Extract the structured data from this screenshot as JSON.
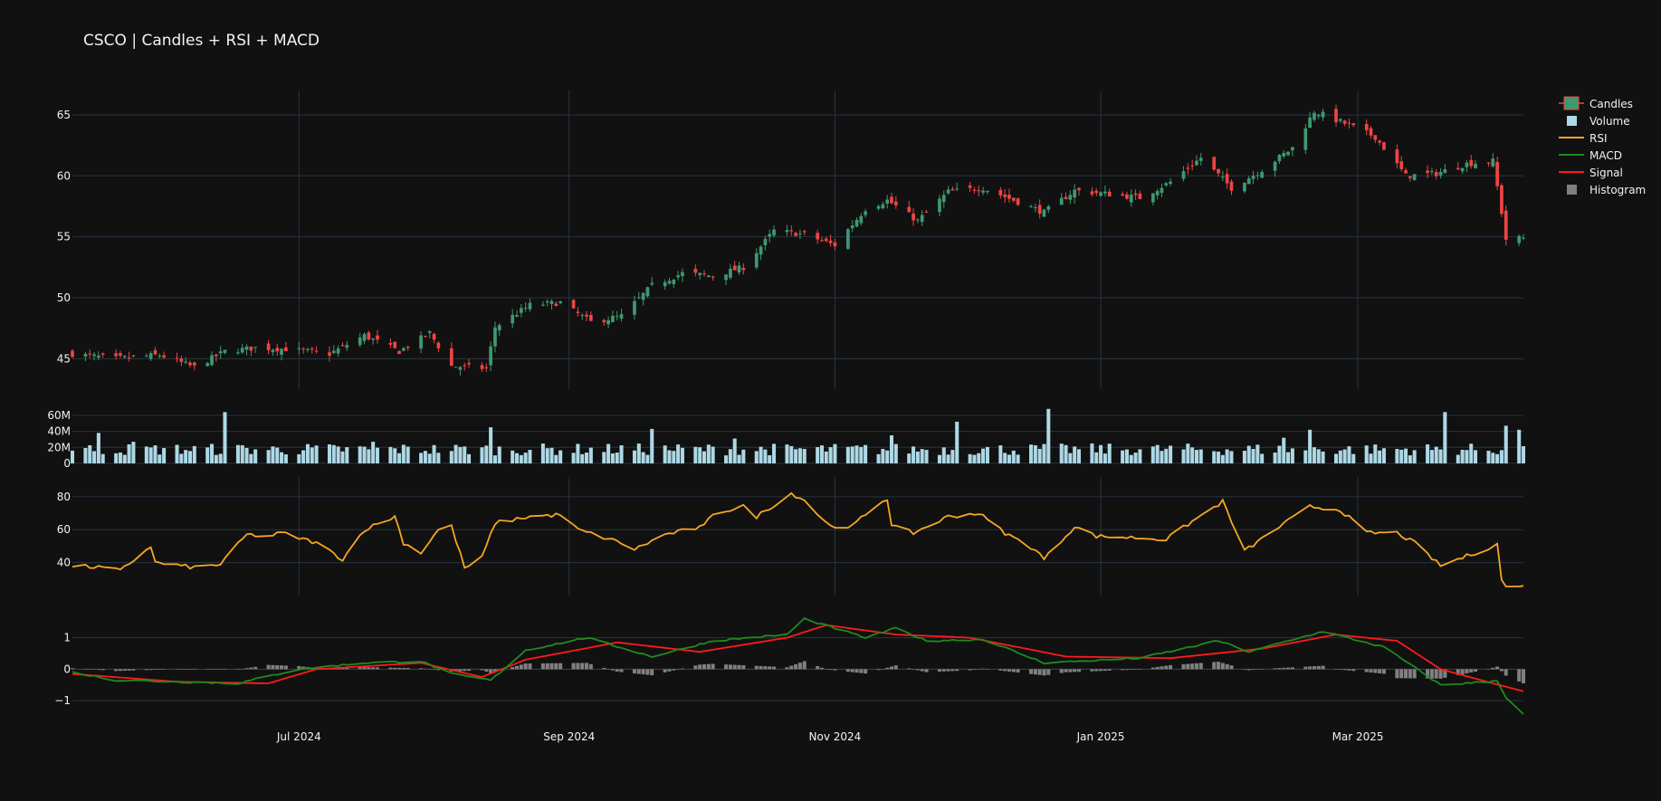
{
  "title": "CSCO | Candles + RSI + MACD",
  "colors": {
    "background": "#111111",
    "grid": "#283442",
    "text": "#f2f2f2",
    "candle_up": "#3d9970",
    "candle_down": "#ef4444",
    "volume": "#add8e6",
    "rsi": "#f5a623",
    "macd": "#1f8a1f",
    "signal": "#ff1a1a",
    "histogram": "#808080"
  },
  "legend": [
    {
      "label": "Candles",
      "icon": "candle-icon",
      "color": "#3d9970"
    },
    {
      "label": "Volume",
      "icon": "bar-icon",
      "color": "#add8e6"
    },
    {
      "label": "RSI",
      "icon": "line-icon",
      "color": "#f5a623"
    },
    {
      "label": "MACD",
      "icon": "line-icon",
      "color": "#1f8a1f"
    },
    {
      "label": "Signal",
      "icon": "line-icon",
      "color": "#ff1a1a"
    },
    {
      "label": "Histogram",
      "icon": "bar-icon",
      "color": "#808080"
    }
  ],
  "chart_data": {
    "type": "candlestick-with-indicators",
    "ticker": "CSCO",
    "x_range": [
      "2024-05-10",
      "2025-04-08"
    ],
    "x_ticks": [
      {
        "date": "2024-07-01",
        "label": "Jul 2024"
      },
      {
        "date": "2024-09-01",
        "label": "Sep 2024"
      },
      {
        "date": "2024-11-01",
        "label": "Nov 2024"
      },
      {
        "date": "2025-01-01",
        "label": "Jan 2025"
      },
      {
        "date": "2025-03-01",
        "label": "Mar 2025"
      }
    ],
    "price_panel": {
      "ylim": [
        42.5,
        67
      ],
      "y_ticks": [
        {
          "value": 45,
          "label": "45"
        },
        {
          "value": 50,
          "label": "50"
        },
        {
          "value": 55,
          "label": "55"
        },
        {
          "value": 60,
          "label": "60"
        },
        {
          "value": 65,
          "label": "65"
        }
      ],
      "close_anchors": [
        [
          "2024-05-10",
          45.4
        ],
        [
          "2024-05-20",
          45.0
        ],
        [
          "2024-05-30",
          45.3
        ],
        [
          "2024-06-07",
          44.3
        ],
        [
          "2024-06-14",
          45.6
        ],
        [
          "2024-06-21",
          45.9
        ],
        [
          "2024-06-28",
          45.8
        ],
        [
          "2024-07-08",
          45.4
        ],
        [
          "2024-07-16",
          46.9
        ],
        [
          "2024-07-24",
          45.6
        ],
        [
          "2024-07-31",
          47.1
        ],
        [
          "2024-08-05",
          44.4
        ],
        [
          "2024-08-13",
          44.2
        ],
        [
          "2024-08-15",
          47.6
        ],
        [
          "2024-08-23",
          49.4
        ],
        [
          "2024-08-30",
          49.6
        ],
        [
          "2024-09-06",
          48.0
        ],
        [
          "2024-09-13",
          48.5
        ],
        [
          "2024-09-20",
          51.0
        ],
        [
          "2024-09-27",
          52.0
        ],
        [
          "2024-10-04",
          51.8
        ],
        [
          "2024-10-11",
          52.5
        ],
        [
          "2024-10-18",
          55.5
        ],
        [
          "2024-10-25",
          55.2
        ],
        [
          "2024-11-01",
          54.3
        ],
        [
          "2024-11-08",
          57.3
        ],
        [
          "2024-11-13",
          58.0
        ],
        [
          "2024-11-20",
          56.3
        ],
        [
          "2024-11-27",
          58.7
        ],
        [
          "2024-12-05",
          59.0
        ],
        [
          "2024-12-12",
          58.0
        ],
        [
          "2024-12-19",
          57.0
        ],
        [
          "2024-12-26",
          58.8
        ],
        [
          "2025-01-03",
          58.5
        ],
        [
          "2025-01-10",
          58.2
        ],
        [
          "2025-01-17",
          59.5
        ],
        [
          "2025-01-24",
          61.5
        ],
        [
          "2025-01-31",
          59.0
        ],
        [
          "2025-02-07",
          60.5
        ],
        [
          "2025-02-14",
          62.3
        ],
        [
          "2025-02-19",
          65.3
        ],
        [
          "2025-02-26",
          64.3
        ],
        [
          "2025-03-05",
          63.2
        ],
        [
          "2025-03-12",
          60.0
        ],
        [
          "2025-03-19",
          60.2
        ],
        [
          "2025-03-26",
          61.0
        ],
        [
          "2025-04-01",
          61.2
        ],
        [
          "2025-04-03",
          57.0
        ],
        [
          "2025-04-04",
          54.8
        ],
        [
          "2025-04-08",
          54.9
        ]
      ]
    },
    "volume_panel": {
      "ylim": [
        0,
        70
      ],
      "unit": "M",
      "y_ticks": [
        {
          "value": 0,
          "label": "0"
        },
        {
          "value": 20,
          "label": "20M"
        },
        {
          "value": 40,
          "label": "40M"
        },
        {
          "value": 60,
          "label": "60M"
        }
      ],
      "typical_range": [
        10,
        25
      ],
      "spikes": [
        [
          "2024-05-16",
          38
        ],
        [
          "2024-05-24",
          27
        ],
        [
          "2024-06-14",
          64
        ],
        [
          "2024-07-18",
          27
        ],
        [
          "2024-08-14",
          45
        ],
        [
          "2024-09-20",
          43
        ],
        [
          "2024-10-09",
          31
        ],
        [
          "2024-11-14",
          35
        ],
        [
          "2024-11-29",
          52
        ],
        [
          "2024-12-20",
          68
        ],
        [
          "2025-02-12",
          32
        ],
        [
          "2025-02-18",
          42
        ],
        [
          "2025-03-21",
          64
        ],
        [
          "2025-04-04",
          47
        ],
        [
          "2025-04-07",
          42
        ]
      ]
    },
    "rsi_panel": {
      "ylim": [
        20,
        92
      ],
      "y_ticks": [
        {
          "value": 40,
          "label": "40"
        },
        {
          "value": 60,
          "label": "60"
        },
        {
          "value": 80,
          "label": "80"
        }
      ],
      "anchors": [
        [
          "2024-05-10",
          38
        ],
        [
          "2024-05-17",
          37
        ],
        [
          "2024-05-21",
          35
        ],
        [
          "2024-05-28",
          50
        ],
        [
          "2024-05-29",
          40
        ],
        [
          "2024-06-07",
          37
        ],
        [
          "2024-06-13",
          39
        ],
        [
          "2024-06-19",
          57
        ],
        [
          "2024-06-24",
          56
        ],
        [
          "2024-06-27",
          58
        ],
        [
          "2024-07-05",
          52
        ],
        [
          "2024-07-11",
          42
        ],
        [
          "2024-07-16",
          60
        ],
        [
          "2024-07-23",
          68
        ],
        [
          "2024-07-25",
          52
        ],
        [
          "2024-07-29",
          46
        ],
        [
          "2024-08-02",
          60
        ],
        [
          "2024-08-05",
          62
        ],
        [
          "2024-08-08",
          37
        ],
        [
          "2024-08-09",
          38
        ],
        [
          "2024-08-12",
          43
        ],
        [
          "2024-08-15",
          64
        ],
        [
          "2024-08-23",
          68
        ],
        [
          "2024-08-30",
          69
        ],
        [
          "2024-09-03",
          60
        ],
        [
          "2024-09-13",
          52
        ],
        [
          "2024-09-16",
          48
        ],
        [
          "2024-09-23",
          57
        ],
        [
          "2024-10-02",
          62
        ],
        [
          "2024-10-04",
          70
        ],
        [
          "2024-10-11",
          74
        ],
        [
          "2024-10-14",
          68
        ],
        [
          "2024-10-22",
          82
        ],
        [
          "2024-10-25",
          78
        ],
        [
          "2024-10-30",
          64
        ],
        [
          "2024-11-04",
          60
        ],
        [
          "2024-11-11",
          76
        ],
        [
          "2024-11-13",
          79
        ],
        [
          "2024-11-14",
          62
        ],
        [
          "2024-11-19",
          58
        ],
        [
          "2024-11-27",
          68
        ],
        [
          "2024-12-04",
          70
        ],
        [
          "2024-12-10",
          58
        ],
        [
          "2024-12-17",
          48
        ],
        [
          "2024-12-19",
          42
        ],
        [
          "2024-12-26",
          62
        ],
        [
          "2024-12-31",
          56
        ],
        [
          "2025-01-10",
          55
        ],
        [
          "2025-01-16",
          54
        ],
        [
          "2025-01-22",
          65
        ],
        [
          "2025-01-29",
          77
        ],
        [
          "2025-02-03",
          47
        ],
        [
          "2025-02-10",
          60
        ],
        [
          "2025-02-18",
          74
        ],
        [
          "2025-02-25",
          72
        ],
        [
          "2025-03-03",
          58
        ],
        [
          "2025-03-10",
          58
        ],
        [
          "2025-03-14",
          52
        ],
        [
          "2025-03-20",
          38
        ],
        [
          "2025-03-24",
          42
        ],
        [
          "2025-03-28",
          46
        ],
        [
          "2025-04-02",
          51
        ],
        [
          "2025-04-03",
          30
        ],
        [
          "2025-04-04",
          25
        ],
        [
          "2025-04-07",
          25
        ],
        [
          "2025-04-08",
          27
        ]
      ]
    },
    "macd_panel": {
      "ylim": [
        -1.6,
        1.85
      ],
      "y_ticks": [
        {
          "value": -1,
          "label": "−1"
        },
        {
          "value": 0,
          "label": "0"
        },
        {
          "value": 1,
          "label": "1"
        }
      ],
      "macd_anchors": [
        [
          "2024-05-10",
          -0.1
        ],
        [
          "2024-05-20",
          -0.35
        ],
        [
          "2024-06-03",
          -0.4
        ],
        [
          "2024-06-17",
          -0.45
        ],
        [
          "2024-07-01",
          0.0
        ],
        [
          "2024-07-16",
          0.2
        ],
        [
          "2024-07-29",
          0.25
        ],
        [
          "2024-08-05",
          -0.15
        ],
        [
          "2024-08-14",
          -0.35
        ],
        [
          "2024-08-22",
          0.6
        ],
        [
          "2024-09-05",
          1.0
        ],
        [
          "2024-09-20",
          0.4
        ],
        [
          "2024-10-04",
          0.9
        ],
        [
          "2024-10-21",
          1.1
        ],
        [
          "2024-10-25",
          1.6
        ],
        [
          "2024-11-08",
          1.0
        ],
        [
          "2024-11-15",
          1.3
        ],
        [
          "2024-11-22",
          0.9
        ],
        [
          "2024-12-05",
          0.95
        ],
        [
          "2024-12-19",
          0.2
        ],
        [
          "2025-01-10",
          0.35
        ],
        [
          "2025-01-28",
          0.9
        ],
        [
          "2025-02-04",
          0.55
        ],
        [
          "2025-02-21",
          1.2
        ],
        [
          "2025-03-07",
          0.7
        ],
        [
          "2025-03-20",
          -0.5
        ],
        [
          "2025-03-31",
          -0.4
        ],
        [
          "2025-04-02",
          -0.35
        ],
        [
          "2025-04-04",
          -0.9
        ],
        [
          "2025-04-08",
          -1.45
        ]
      ],
      "signal_anchors": [
        [
          "2024-05-10",
          -0.15
        ],
        [
          "2024-06-03",
          -0.4
        ],
        [
          "2024-06-24",
          -0.45
        ],
        [
          "2024-07-05",
          0.0
        ],
        [
          "2024-07-29",
          0.2
        ],
        [
          "2024-08-12",
          -0.25
        ],
        [
          "2024-08-22",
          0.3
        ],
        [
          "2024-09-12",
          0.85
        ],
        [
          "2024-10-01",
          0.55
        ],
        [
          "2024-10-21",
          1.0
        ],
        [
          "2024-10-30",
          1.4
        ],
        [
          "2024-11-15",
          1.1
        ],
        [
          "2024-12-02",
          1.0
        ],
        [
          "2024-12-24",
          0.4
        ],
        [
          "2025-01-17",
          0.35
        ],
        [
          "2025-02-07",
          0.65
        ],
        [
          "2025-02-24",
          1.1
        ],
        [
          "2025-03-10",
          0.9
        ],
        [
          "2025-03-20",
          0.0
        ],
        [
          "2025-04-01",
          -0.45
        ],
        [
          "2025-04-08",
          -0.7
        ]
      ]
    }
  }
}
